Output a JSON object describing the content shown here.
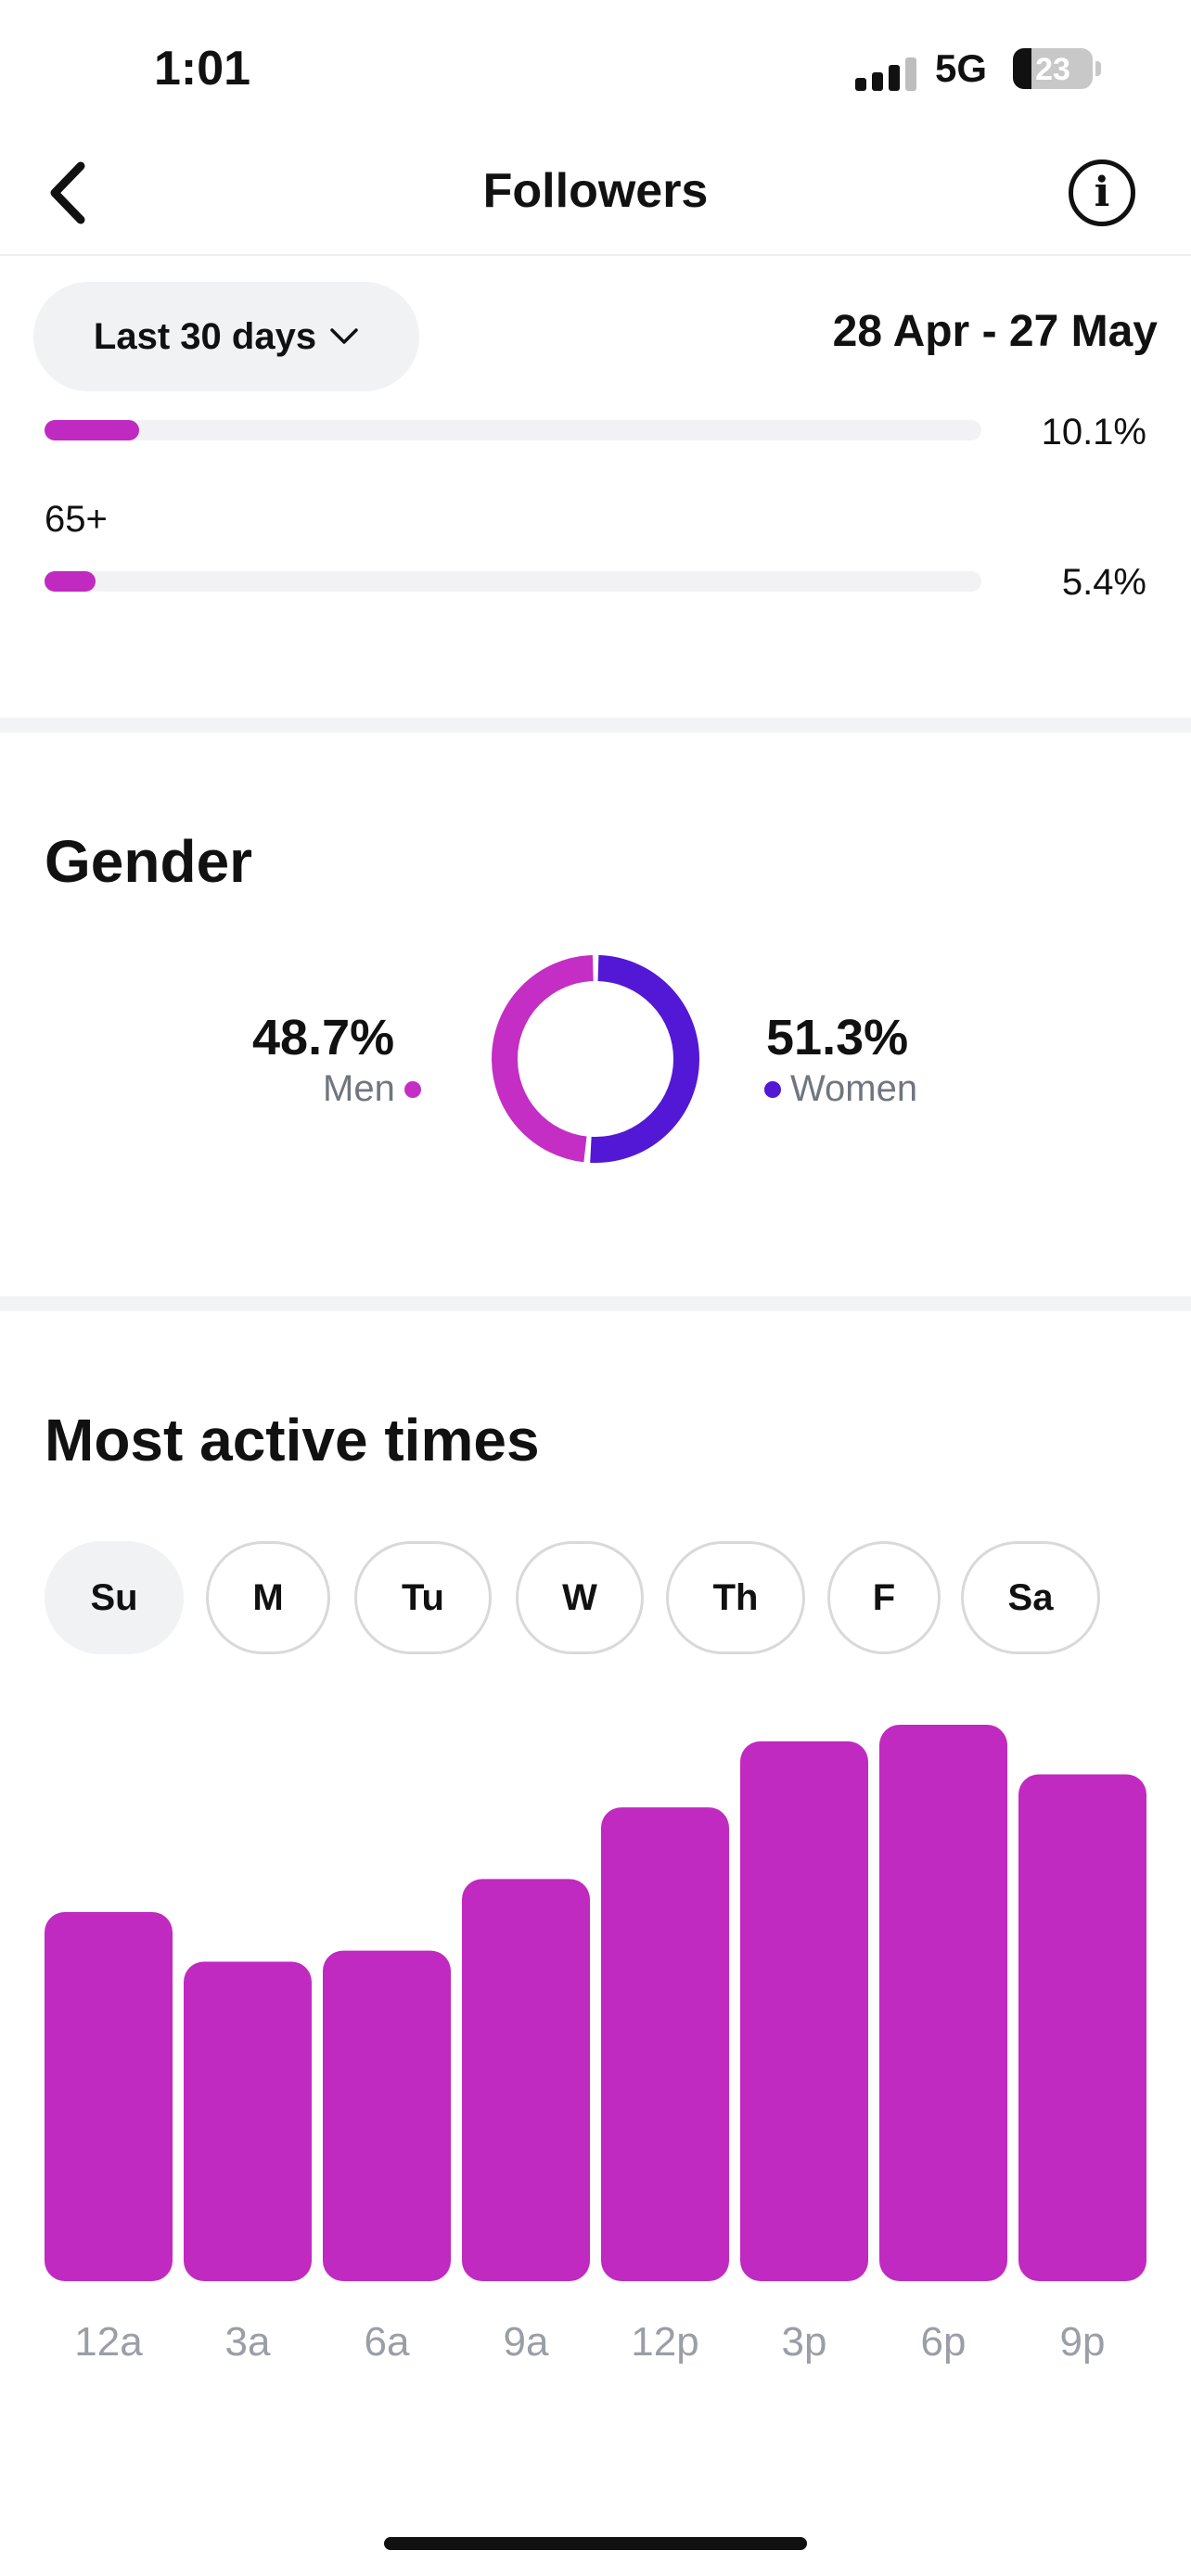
{
  "status_bar": {
    "time": "1:01",
    "network": "5G",
    "battery": "23",
    "battery_level": 0.23
  },
  "nav": {
    "title": "Followers"
  },
  "filters": {
    "range_label": "Last 30 days",
    "date_range": "28 Apr - 27 May"
  },
  "age": {
    "rows": [
      {
        "label": "",
        "value": "10.1%",
        "fill": 0.101
      },
      {
        "label": "65+",
        "value": "5.4%",
        "fill": 0.054
      }
    ]
  },
  "gender": {
    "title": "Gender",
    "men": {
      "value": "48.7%",
      "label": "Men",
      "fraction": 0.487,
      "color": "#c42ec4"
    },
    "women": {
      "value": "51.3%",
      "label": "Women",
      "fraction": 0.513,
      "color": "#5218d6"
    }
  },
  "active_times": {
    "title": "Most active times",
    "days": [
      "Su",
      "M",
      "Tu",
      "W",
      "Th",
      "F",
      "Sa"
    ],
    "selected_day": "Su"
  },
  "chart_data": {
    "type": "bar",
    "categories": [
      "12a",
      "3a",
      "6a",
      "9a",
      "12p",
      "3p",
      "6p",
      "9p"
    ],
    "values": [
      67,
      58,
      60,
      73,
      86,
      98,
      101,
      92
    ],
    "ylim": [
      0,
      101
    ],
    "grid": false,
    "bar_color": "#c02ac0"
  }
}
